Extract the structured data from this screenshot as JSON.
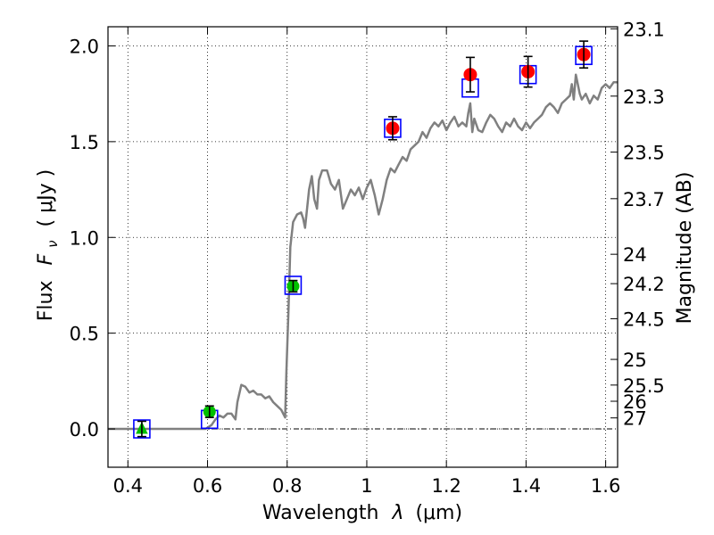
{
  "chart_data": {
    "type": "scatter",
    "xlabel_text": "Wavelength",
    "xlabel_math": "λ",
    "xlabel_unit": "(μm)",
    "ylabel_text": "Flux",
    "ylabel_math": "F",
    "ylabel_sub": "ν",
    "ylabel_unit": "( μJy )",
    "y2label": "Magnitude (AB)",
    "xlim": [
      0.35,
      1.63
    ],
    "ylim": [
      -0.2,
      2.1
    ],
    "grid": true,
    "x_ticks": [
      0.4,
      0.6,
      0.8,
      1.0,
      1.2,
      1.4,
      1.6
    ],
    "x_tick_labels": [
      "0.4",
      "0.6",
      "0.8",
      "1",
      "1.2",
      "1.4",
      "1.6"
    ],
    "y_ticks": [
      0.0,
      0.5,
      1.0,
      1.5,
      2.0
    ],
    "y_tick_labels": [
      "0.0",
      "0.5",
      "1.0",
      "1.5",
      "2.0"
    ],
    "mag_tick_labels": [
      "23.1",
      "23.3",
      "23.5",
      "23.7",
      "24",
      "24.2",
      "24.5",
      "25",
      "25.5",
      "26",
      "27"
    ],
    "spectrum_color": "#808080",
    "spectrum": [
      [
        0.35,
        0.0
      ],
      [
        0.55,
        0.0
      ],
      [
        0.595,
        0.0
      ],
      [
        0.61,
        0.02
      ],
      [
        0.62,
        0.05
      ],
      [
        0.63,
        0.07
      ],
      [
        0.64,
        0.06
      ],
      [
        0.65,
        0.08
      ],
      [
        0.66,
        0.08
      ],
      [
        0.67,
        0.05
      ],
      [
        0.675,
        0.14
      ],
      [
        0.685,
        0.23
      ],
      [
        0.695,
        0.22
      ],
      [
        0.705,
        0.19
      ],
      [
        0.715,
        0.2
      ],
      [
        0.725,
        0.18
      ],
      [
        0.735,
        0.18
      ],
      [
        0.745,
        0.16
      ],
      [
        0.755,
        0.17
      ],
      [
        0.765,
        0.14
      ],
      [
        0.775,
        0.12
      ],
      [
        0.785,
        0.1
      ],
      [
        0.795,
        0.06
      ],
      [
        0.798,
        0.3
      ],
      [
        0.803,
        0.6
      ],
      [
        0.808,
        0.95
      ],
      [
        0.815,
        1.08
      ],
      [
        0.825,
        1.12
      ],
      [
        0.835,
        1.13
      ],
      [
        0.84,
        1.1
      ],
      [
        0.845,
        1.05
      ],
      [
        0.855,
        1.25
      ],
      [
        0.862,
        1.32
      ],
      [
        0.868,
        1.2
      ],
      [
        0.875,
        1.15
      ],
      [
        0.88,
        1.3
      ],
      [
        0.888,
        1.35
      ],
      [
        0.9,
        1.35
      ],
      [
        0.91,
        1.28
      ],
      [
        0.92,
        1.25
      ],
      [
        0.93,
        1.3
      ],
      [
        0.94,
        1.15
      ],
      [
        0.95,
        1.2
      ],
      [
        0.96,
        1.25
      ],
      [
        0.97,
        1.22
      ],
      [
        0.98,
        1.26
      ],
      [
        0.99,
        1.2
      ],
      [
        1.0,
        1.26
      ],
      [
        1.01,
        1.3
      ],
      [
        1.02,
        1.22
      ],
      [
        1.03,
        1.12
      ],
      [
        1.04,
        1.2
      ],
      [
        1.05,
        1.3
      ],
      [
        1.06,
        1.36
      ],
      [
        1.07,
        1.34
      ],
      [
        1.08,
        1.38
      ],
      [
        1.09,
        1.42
      ],
      [
        1.1,
        1.4
      ],
      [
        1.11,
        1.46
      ],
      [
        1.12,
        1.48
      ],
      [
        1.13,
        1.5
      ],
      [
        1.14,
        1.55
      ],
      [
        1.15,
        1.52
      ],
      [
        1.16,
        1.57
      ],
      [
        1.17,
        1.6
      ],
      [
        1.18,
        1.58
      ],
      [
        1.19,
        1.61
      ],
      [
        1.2,
        1.56
      ],
      [
        1.21,
        1.6
      ],
      [
        1.22,
        1.63
      ],
      [
        1.23,
        1.58
      ],
      [
        1.24,
        1.6
      ],
      [
        1.25,
        1.58
      ],
      [
        1.255,
        1.65
      ],
      [
        1.26,
        1.7
      ],
      [
        1.265,
        1.55
      ],
      [
        1.27,
        1.62
      ],
      [
        1.28,
        1.56
      ],
      [
        1.29,
        1.55
      ],
      [
        1.3,
        1.6
      ],
      [
        1.31,
        1.64
      ],
      [
        1.32,
        1.62
      ],
      [
        1.33,
        1.58
      ],
      [
        1.34,
        1.55
      ],
      [
        1.35,
        1.6
      ],
      [
        1.36,
        1.58
      ],
      [
        1.37,
        1.62
      ],
      [
        1.38,
        1.58
      ],
      [
        1.39,
        1.56
      ],
      [
        1.4,
        1.6
      ],
      [
        1.41,
        1.57
      ],
      [
        1.42,
        1.6
      ],
      [
        1.43,
        1.62
      ],
      [
        1.44,
        1.64
      ],
      [
        1.45,
        1.68
      ],
      [
        1.46,
        1.7
      ],
      [
        1.47,
        1.68
      ],
      [
        1.48,
        1.65
      ],
      [
        1.49,
        1.7
      ],
      [
        1.5,
        1.72
      ],
      [
        1.51,
        1.74
      ],
      [
        1.515,
        1.8
      ],
      [
        1.52,
        1.72
      ],
      [
        1.525,
        1.85
      ],
      [
        1.53,
        1.8
      ],
      [
        1.535,
        1.75
      ],
      [
        1.54,
        1.72
      ],
      [
        1.55,
        1.75
      ],
      [
        1.56,
        1.7
      ],
      [
        1.57,
        1.74
      ],
      [
        1.58,
        1.72
      ],
      [
        1.59,
        1.78
      ],
      [
        1.6,
        1.8
      ],
      [
        1.61,
        1.78
      ],
      [
        1.62,
        1.81
      ],
      [
        1.63,
        1.81
      ]
    ],
    "model_boxes": {
      "color": "#0000ff",
      "points": [
        [
          0.435,
          0.0
        ],
        [
          0.605,
          0.05
        ],
        [
          0.815,
          0.75
        ],
        [
          1.065,
          1.57
        ],
        [
          1.26,
          1.78
        ],
        [
          1.405,
          1.85
        ],
        [
          1.545,
          1.95
        ]
      ]
    },
    "detections_green": {
      "color": "#00c000",
      "points": [
        {
          "x": 0.605,
          "y": 0.09,
          "err": 0.03
        },
        {
          "x": 0.815,
          "y": 0.745,
          "err": 0.03
        }
      ]
    },
    "detections_red": {
      "color": "#ff0000",
      "points": [
        {
          "x": 1.065,
          "y": 1.57,
          "err": 0.06
        },
        {
          "x": 1.26,
          "y": 1.85,
          "err": 0.09
        },
        {
          "x": 1.405,
          "y": 1.865,
          "err": 0.08
        },
        {
          "x": 1.545,
          "y": 1.955,
          "err": 0.07
        }
      ]
    },
    "upper_limit": {
      "x": 0.435,
      "y": 0.0,
      "err": 0.04,
      "color": "#00c000"
    }
  }
}
